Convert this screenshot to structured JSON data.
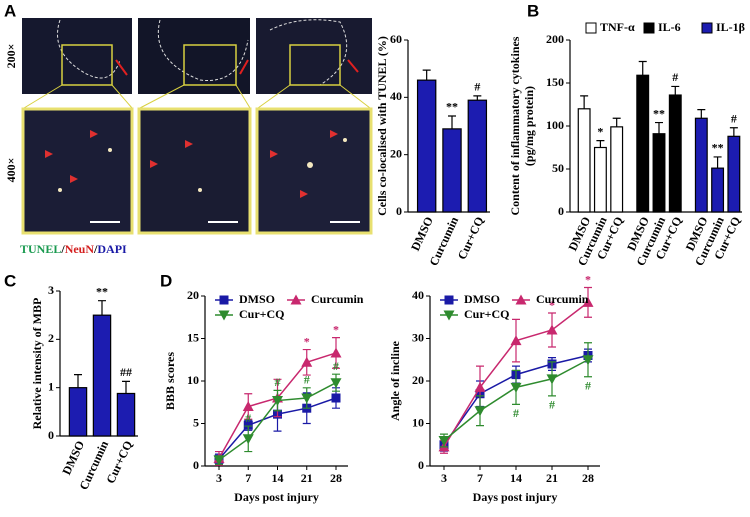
{
  "panels": [
    "A",
    "B",
    "C",
    "D"
  ],
  "micrographs": {
    "magnifications": [
      "200×",
      "400×"
    ],
    "stain": [
      {
        "text": "TUNEL",
        "color": "#1a9a50"
      },
      {
        "text": "/",
        "color": "#000000"
      },
      {
        "text": "NeuN",
        "color": "#d42020"
      },
      {
        "text": "/",
        "color": "#000000"
      },
      {
        "text": "DAPI",
        "color": "#1a1aa6"
      }
    ]
  },
  "chart_data": [
    {
      "type": "bar",
      "ylabel": [
        "Cells co-localised with TUNEL (%)"
      ],
      "categories": [
        "DMSO",
        "Curcumin",
        "Cur+CQ"
      ],
      "values": [
        46,
        29,
        39
      ],
      "errors": [
        3.5,
        4.5,
        1.5
      ],
      "annotations": [
        null,
        "**",
        "#"
      ],
      "color": "#1c1cb0",
      "ylim": [
        0,
        60
      ],
      "yticks": [
        0,
        20,
        40,
        60
      ]
    },
    {
      "type": "bar",
      "ylabel": [
        "Content of inflammatory cytokines",
        "(pg/mg protein)"
      ],
      "categories": [
        "DMSO",
        "Curcumin",
        "Cur+CQ"
      ],
      "series": [
        {
          "name": "TNF-α",
          "color": "#ffffff",
          "values": [
            120,
            75,
            99
          ],
          "errors": [
            15,
            8,
            10
          ],
          "annotations": [
            null,
            "*",
            null
          ]
        },
        {
          "name": "IL-6",
          "color": "#000000",
          "values": [
            159,
            91,
            136
          ],
          "errors": [
            16,
            13,
            10
          ],
          "annotations": [
            null,
            "**",
            "#"
          ]
        },
        {
          "name": "IL-1β",
          "color": "#1c1cb0",
          "values": [
            109,
            51,
            88
          ],
          "errors": [
            10,
            13,
            10
          ],
          "annotations": [
            null,
            "**",
            "#"
          ]
        }
      ],
      "ylim": [
        0,
        200
      ],
      "yticks": [
        0,
        50,
        100,
        150,
        200
      ]
    },
    {
      "type": "bar",
      "ylabel": [
        "Relative intensity of MBP"
      ],
      "categories": [
        "DMSO",
        "Curcumin",
        "Cur+CQ"
      ],
      "values": [
        1.0,
        2.5,
        0.88
      ],
      "errors": [
        0.27,
        0.3,
        0.25
      ],
      "annotations": [
        null,
        "**",
        "##"
      ],
      "color": "#1c1cb0",
      "ylim": [
        0,
        3
      ],
      "yticks": [
        0,
        1,
        2,
        3
      ]
    },
    {
      "type": "line",
      "xlabel": "Days post injury",
      "ylabel": "BBB scores",
      "categories": [
        "3",
        "7",
        "14",
        "21",
        "28"
      ],
      "series": [
        {
          "name": "DMSO",
          "color": "#1a1aa6",
          "marker": "square",
          "values": [
            0.8,
            4.8,
            6.1,
            6.8,
            8.0
          ],
          "errors": [
            0.6,
            0.6,
            2.0,
            1.8,
            1.2
          ],
          "annotations": [
            null,
            null,
            null,
            null,
            null
          ]
        },
        {
          "name": "Curcumin",
          "color": "#c8286e",
          "marker": "triangle-up",
          "values": [
            0.9,
            7.0,
            8.0,
            12.2,
            13.3
          ],
          "errors": [
            0.8,
            1.5,
            2.2,
            1.5,
            1.8
          ],
          "annotations": [
            null,
            null,
            null,
            "*",
            "*"
          ]
        },
        {
          "name": "Cur+CQ",
          "color": "#2e8b2e",
          "marker": "triangle-down",
          "values": [
            0.7,
            3.2,
            7.7,
            8.0,
            9.8
          ],
          "errors": [
            0.5,
            1.5,
            1.2,
            1.2,
            1.0
          ],
          "annotations": [
            null,
            "#",
            "#",
            "#",
            "#"
          ]
        }
      ],
      "ylim": [
        0,
        20
      ],
      "yticks": [
        0,
        5,
        10,
        15,
        20
      ]
    },
    {
      "type": "line",
      "xlabel": "Days post injury",
      "ylabel": "Angle of incline",
      "categories": [
        "3",
        "7",
        "14",
        "21",
        "28"
      ],
      "series": [
        {
          "name": "DMSO",
          "color": "#1a1aa6",
          "marker": "square",
          "values": [
            5,
            17,
            21.5,
            24,
            26
          ],
          "errors": [
            1.5,
            3,
            2,
            1.5,
            1.5
          ],
          "annotations": [
            null,
            null,
            null,
            null,
            null
          ]
        },
        {
          "name": "Curcumin",
          "color": "#c8286e",
          "marker": "triangle-up",
          "values": [
            4.5,
            18.5,
            29.5,
            32,
            38.5
          ],
          "errors": [
            1.5,
            5,
            5,
            4,
            3.5
          ],
          "annotations": [
            null,
            null,
            null,
            "*",
            "*"
          ]
        },
        {
          "name": "Cur+CQ",
          "color": "#2e8b2e",
          "marker": "triangle-down",
          "values": [
            6,
            13,
            18.5,
            20.5,
            25
          ],
          "errors": [
            1.5,
            3.5,
            4,
            4,
            4
          ],
          "annotations": [
            null,
            null,
            "#",
            "#",
            "#"
          ]
        }
      ],
      "ylim": [
        0,
        40
      ],
      "yticks": [
        0,
        10,
        20,
        30,
        40
      ]
    }
  ]
}
